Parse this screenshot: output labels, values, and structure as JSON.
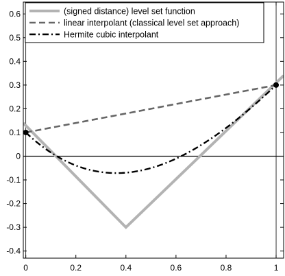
{
  "chart_data": {
    "type": "line",
    "title": "",
    "xlabel": "",
    "ylabel": "",
    "xlim": [
      -0.01,
      1.03
    ],
    "ylim": [
      -0.43,
      0.65
    ],
    "x_ticks": [
      0,
      0.2,
      0.4,
      0.6,
      0.8,
      1
    ],
    "x_tick_labels": [
      "0",
      "0.2",
      "0.4",
      "0.6",
      "0.8",
      "1"
    ],
    "y_ticks": [
      0.6,
      0.5,
      0.4,
      0.3,
      0.2,
      0.1,
      0,
      -0.1,
      -0.2,
      -0.3,
      -0.4
    ],
    "y_tick_labels": [
      "0.6",
      "0.5",
      "0.4",
      "0.3",
      "0.2",
      "0.1",
      "0",
      "-0.1",
      "-0.2",
      "-0.3",
      "-0.4"
    ],
    "grid": false,
    "legend_position": "top-left",
    "reference_lines": {
      "horizontal_y": 0,
      "vertical_x": [
        0,
        1
      ]
    },
    "series": [
      {
        "name": "(signed distance) level set function",
        "style": "solid-thick",
        "color": "#b3b3b3",
        "points": [
          [
            -0.01,
            0.14
          ],
          [
            0.4,
            -0.3
          ],
          [
            1.03,
            0.34
          ]
        ]
      },
      {
        "name": "linear interpolant (classical level set approach)",
        "style": "dashed",
        "color": "#666666",
        "points": [
          [
            0,
            0.1
          ],
          [
            1,
            0.3
          ]
        ]
      },
      {
        "name": "Hermite cubic interpolant",
        "style": "dashdot",
        "color": "#000000",
        "hermite": {
          "x0": 0,
          "x1": 1,
          "y0": 0.1,
          "y1": 0.3,
          "dy0": -1,
          "dy1": 1
        }
      }
    ],
    "markers": [
      [
        0,
        0.1
      ],
      [
        1,
        0.3
      ]
    ]
  }
}
